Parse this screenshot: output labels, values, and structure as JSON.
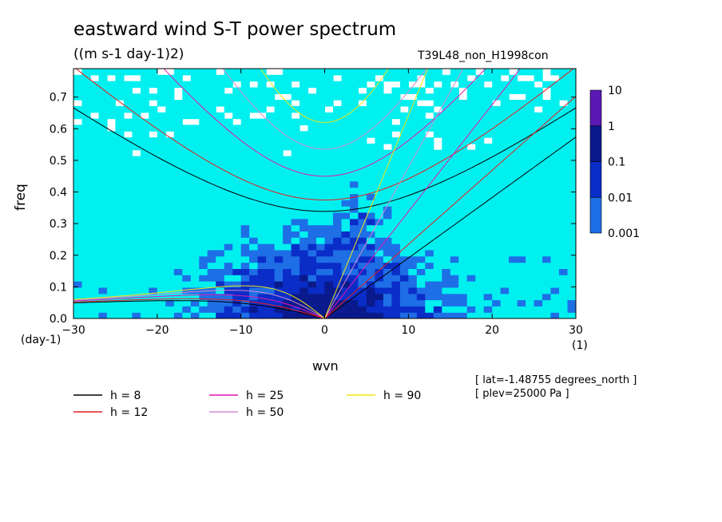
{
  "chart_data": {
    "type": "heatmap",
    "title": "eastward wind S-T power spectrum",
    "units": "((m s-1 day-1)2)",
    "run_name": "T39L48_non_H1998con",
    "xlabel": "wvn",
    "ylabel": "freq",
    "x_unit": "(1)",
    "y_unit": "(day-1)",
    "xlim": [
      -30,
      30
    ],
    "ylim": [
      0,
      0.79
    ],
    "x_ticks": [
      "-30",
      "-20",
      "-10",
      "0",
      "10",
      "20",
      "30"
    ],
    "y_ticks": [
      "0.0",
      "0.1",
      "0.2",
      "0.3",
      "0.4",
      "0.5",
      "0.6",
      "0.7"
    ],
    "colorbar": {
      "labels": [
        "0.001",
        "0.01",
        "0.1",
        "1",
        "10"
      ],
      "colors": [
        "#00f0f0",
        "#1e6ee6",
        "#0a2dc8",
        "#0a1a8c",
        "#5a18b4"
      ]
    },
    "dispersion_curves": [
      {
        "label": "h =  8",
        "h": 8,
        "color": "#000000"
      },
      {
        "label": "h = 12",
        "h": 12,
        "color": "#e61e1e"
      },
      {
        "label": "h = 25",
        "h": 25,
        "color": "#e614b4"
      },
      {
        "label": "h = 50",
        "h": 50,
        "color": "#d28cd2"
      },
      {
        "label": "h = 90",
        "h": 90,
        "color": "#f0e614"
      }
    ],
    "annotations": [
      "[ lat=-1.48755 degrees_north ]",
      "[ plev=25000 Pa ]"
    ],
    "legend_position": "bottom"
  }
}
